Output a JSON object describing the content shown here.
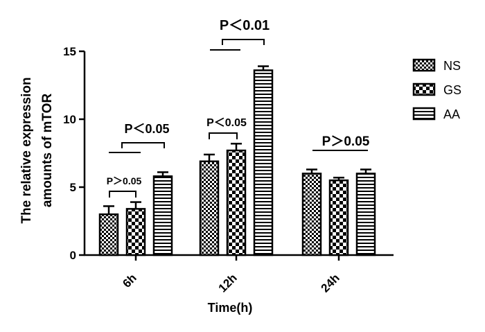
{
  "chart_data": {
    "type": "bar",
    "xlabel": "Time(h)",
    "ylabel": [
      "The relative expression",
      "amounts of mTOR"
    ],
    "ylim": [
      0,
      15
    ],
    "yticks": [
      0,
      5,
      10,
      15
    ],
    "categories": [
      "6h",
      "12h",
      "24h"
    ],
    "series": [
      {
        "name": "NS",
        "pattern": "check",
        "values": [
          3.0,
          6.9,
          6.0
        ],
        "errors": [
          0.6,
          0.5,
          0.3
        ]
      },
      {
        "name": "GS",
        "pattern": "bigcheck",
        "values": [
          3.4,
          7.7,
          5.5
        ],
        "errors": [
          0.5,
          0.5,
          0.2
        ]
      },
      {
        "name": "AA",
        "pattern": "stripes",
        "values": [
          5.8,
          13.6,
          6.0
        ],
        "errors": [
          0.3,
          0.3,
          0.3
        ]
      }
    ],
    "legend_position": "top-right",
    "annotations": [
      "P＞0.05",
      "P＜0.05",
      "P＜0.05",
      "P＜0.01",
      "P＞0.05"
    ]
  }
}
